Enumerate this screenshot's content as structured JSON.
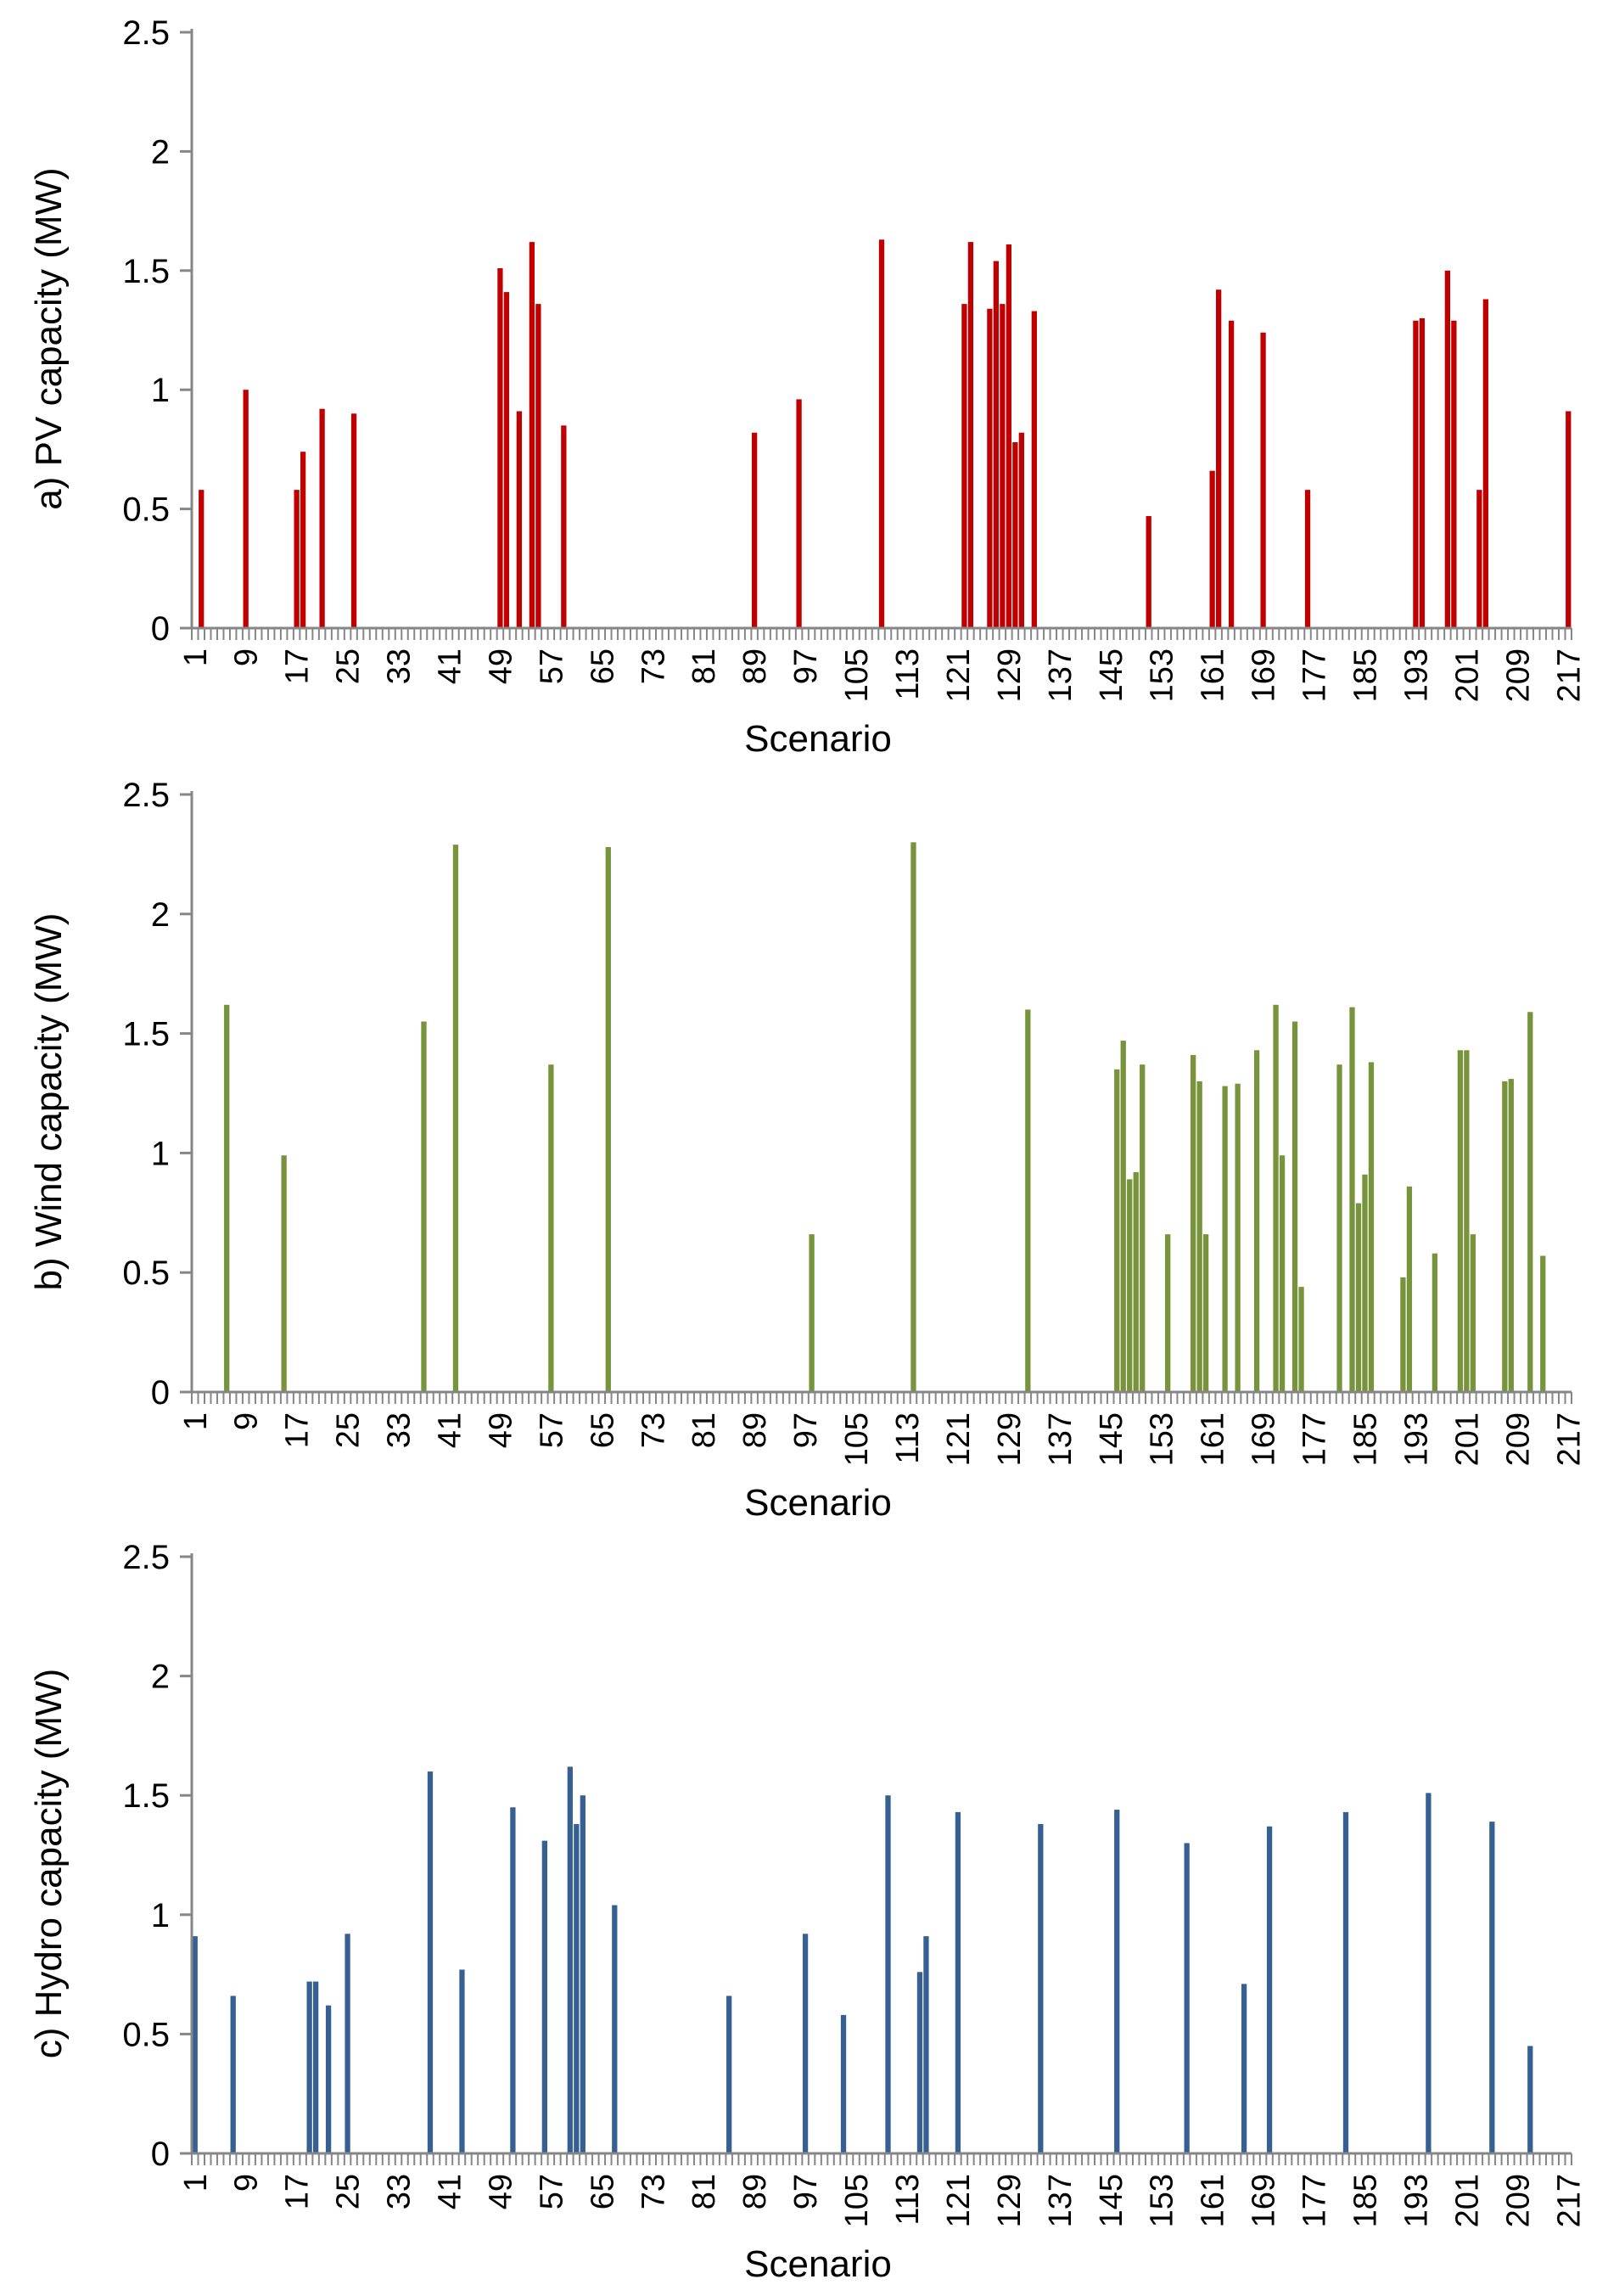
{
  "chart_data": [
    {
      "type": "bar",
      "title": "",
      "ylabel": "a) PV capacity (MW)",
      "xlabel": "Scenario",
      "ylim": [
        0,
        2.5
      ],
      "yticks": [
        "0",
        "0.5",
        "1",
        "1.5",
        "2",
        "2.5"
      ],
      "xticks": [
        "1",
        "9",
        "17",
        "25",
        "33",
        "41",
        "49",
        "57",
        "65",
        "73",
        "81",
        "89",
        "97",
        "105",
        "113",
        "121",
        "129",
        "137",
        "145",
        "153",
        "161",
        "169",
        "177",
        "185",
        "193",
        "201",
        "209",
        "217"
      ],
      "xrange": [
        1,
        217
      ],
      "color": "#c00000",
      "points": [
        {
          "x": 2,
          "y": 0.58
        },
        {
          "x": 9,
          "y": 1.0
        },
        {
          "x": 17,
          "y": 0.58
        },
        {
          "x": 18,
          "y": 0.74
        },
        {
          "x": 21,
          "y": 0.92
        },
        {
          "x": 26,
          "y": 0.9
        },
        {
          "x": 49,
          "y": 1.51
        },
        {
          "x": 50,
          "y": 1.41
        },
        {
          "x": 52,
          "y": 0.91
        },
        {
          "x": 54,
          "y": 1.62
        },
        {
          "x": 55,
          "y": 1.36
        },
        {
          "x": 59,
          "y": 0.85
        },
        {
          "x": 89,
          "y": 0.82
        },
        {
          "x": 96,
          "y": 0.96
        },
        {
          "x": 109,
          "y": 1.63
        },
        {
          "x": 122,
          "y": 1.36
        },
        {
          "x": 123,
          "y": 1.62
        },
        {
          "x": 126,
          "y": 1.34
        },
        {
          "x": 127,
          "y": 1.54
        },
        {
          "x": 128,
          "y": 1.36
        },
        {
          "x": 129,
          "y": 1.61
        },
        {
          "x": 130,
          "y": 0.78
        },
        {
          "x": 131,
          "y": 0.82
        },
        {
          "x": 133,
          "y": 1.33
        },
        {
          "x": 151,
          "y": 0.47
        },
        {
          "x": 161,
          "y": 0.66
        },
        {
          "x": 162,
          "y": 1.42
        },
        {
          "x": 164,
          "y": 1.29
        },
        {
          "x": 169,
          "y": 1.24
        },
        {
          "x": 176,
          "y": 0.58
        },
        {
          "x": 193,
          "y": 1.29
        },
        {
          "x": 194,
          "y": 1.3
        },
        {
          "x": 198,
          "y": 1.5
        },
        {
          "x": 199,
          "y": 1.29
        },
        {
          "x": 203,
          "y": 0.58
        },
        {
          "x": 204,
          "y": 1.38
        },
        {
          "x": 217,
          "y": 0.91
        }
      ]
    },
    {
      "type": "bar",
      "title": "",
      "ylabel": "b) Wind capacity (MW)",
      "xlabel": "Scenario",
      "ylim": [
        0,
        2.5
      ],
      "yticks": [
        "0",
        "0.5",
        "1",
        "1.5",
        "2",
        "2.5"
      ],
      "xticks": [
        "1",
        "9",
        "17",
        "25",
        "33",
        "41",
        "49",
        "57",
        "65",
        "73",
        "81",
        "89",
        "97",
        "105",
        "113",
        "121",
        "129",
        "137",
        "145",
        "153",
        "161",
        "169",
        "177",
        "185",
        "193",
        "201",
        "209",
        "217"
      ],
      "xrange": [
        1,
        217
      ],
      "color": "#77933c",
      "points": [
        {
          "x": 6,
          "y": 1.62
        },
        {
          "x": 15,
          "y": 0.99
        },
        {
          "x": 37,
          "y": 1.55
        },
        {
          "x": 42,
          "y": 2.29
        },
        {
          "x": 57,
          "y": 1.37
        },
        {
          "x": 66,
          "y": 2.28
        },
        {
          "x": 98,
          "y": 0.66
        },
        {
          "x": 114,
          "y": 2.3
        },
        {
          "x": 132,
          "y": 1.6
        },
        {
          "x": 146,
          "y": 1.35
        },
        {
          "x": 147,
          "y": 1.47
        },
        {
          "x": 148,
          "y": 0.89
        },
        {
          "x": 149,
          "y": 0.92
        },
        {
          "x": 150,
          "y": 1.37
        },
        {
          "x": 154,
          "y": 0.66
        },
        {
          "x": 158,
          "y": 1.41
        },
        {
          "x": 159,
          "y": 1.3
        },
        {
          "x": 160,
          "y": 0.66
        },
        {
          "x": 163,
          "y": 1.28
        },
        {
          "x": 165,
          "y": 1.29
        },
        {
          "x": 168,
          "y": 1.43
        },
        {
          "x": 171,
          "y": 1.62
        },
        {
          "x": 172,
          "y": 0.99
        },
        {
          "x": 174,
          "y": 1.55
        },
        {
          "x": 175,
          "y": 0.44
        },
        {
          "x": 181,
          "y": 1.37
        },
        {
          "x": 183,
          "y": 1.61
        },
        {
          "x": 184,
          "y": 0.79
        },
        {
          "x": 185,
          "y": 0.91
        },
        {
          "x": 186,
          "y": 1.38
        },
        {
          "x": 191,
          "y": 0.48
        },
        {
          "x": 192,
          "y": 0.86
        },
        {
          "x": 196,
          "y": 0.58
        },
        {
          "x": 200,
          "y": 1.43
        },
        {
          "x": 201,
          "y": 1.43
        },
        {
          "x": 202,
          "y": 0.66
        },
        {
          "x": 207,
          "y": 1.3
        },
        {
          "x": 208,
          "y": 1.31
        },
        {
          "x": 211,
          "y": 1.59
        },
        {
          "x": 213,
          "y": 0.57
        }
      ]
    },
    {
      "type": "bar",
      "title": "",
      "ylabel": "c) Hydro capacity (MW)",
      "xlabel": "Scenario",
      "ylim": [
        0,
        2.5
      ],
      "yticks": [
        "0",
        "0.5",
        "1",
        "1.5",
        "2",
        "2.5"
      ],
      "xticks": [
        "1",
        "9",
        "17",
        "25",
        "33",
        "41",
        "49",
        "57",
        "65",
        "73",
        "81",
        "89",
        "97",
        "105",
        "113",
        "121",
        "129",
        "137",
        "145",
        "153",
        "161",
        "169",
        "177",
        "185",
        "193",
        "201",
        "209",
        "217"
      ],
      "xrange": [
        1,
        217
      ],
      "color": "#376092",
      "points": [
        {
          "x": 1,
          "y": 0.91
        },
        {
          "x": 7,
          "y": 0.66
        },
        {
          "x": 19,
          "y": 0.72
        },
        {
          "x": 20,
          "y": 0.72
        },
        {
          "x": 22,
          "y": 0.62
        },
        {
          "x": 25,
          "y": 0.92
        },
        {
          "x": 38,
          "y": 1.6
        },
        {
          "x": 43,
          "y": 0.77
        },
        {
          "x": 51,
          "y": 1.45
        },
        {
          "x": 56,
          "y": 1.31
        },
        {
          "x": 60,
          "y": 1.62
        },
        {
          "x": 61,
          "y": 1.38
        },
        {
          "x": 62,
          "y": 1.5
        },
        {
          "x": 67,
          "y": 1.04
        },
        {
          "x": 85,
          "y": 0.66
        },
        {
          "x": 97,
          "y": 0.92
        },
        {
          "x": 103,
          "y": 0.58
        },
        {
          "x": 110,
          "y": 1.5
        },
        {
          "x": 115,
          "y": 0.76
        },
        {
          "x": 116,
          "y": 0.91
        },
        {
          "x": 121,
          "y": 1.43
        },
        {
          "x": 134,
          "y": 1.38
        },
        {
          "x": 146,
          "y": 1.44
        },
        {
          "x": 157,
          "y": 1.3
        },
        {
          "x": 166,
          "y": 0.71
        },
        {
          "x": 170,
          "y": 1.37
        },
        {
          "x": 182,
          "y": 1.43
        },
        {
          "x": 195,
          "y": 1.51
        },
        {
          "x": 205,
          "y": 1.39
        },
        {
          "x": 211,
          "y": 0.45
        }
      ]
    }
  ]
}
